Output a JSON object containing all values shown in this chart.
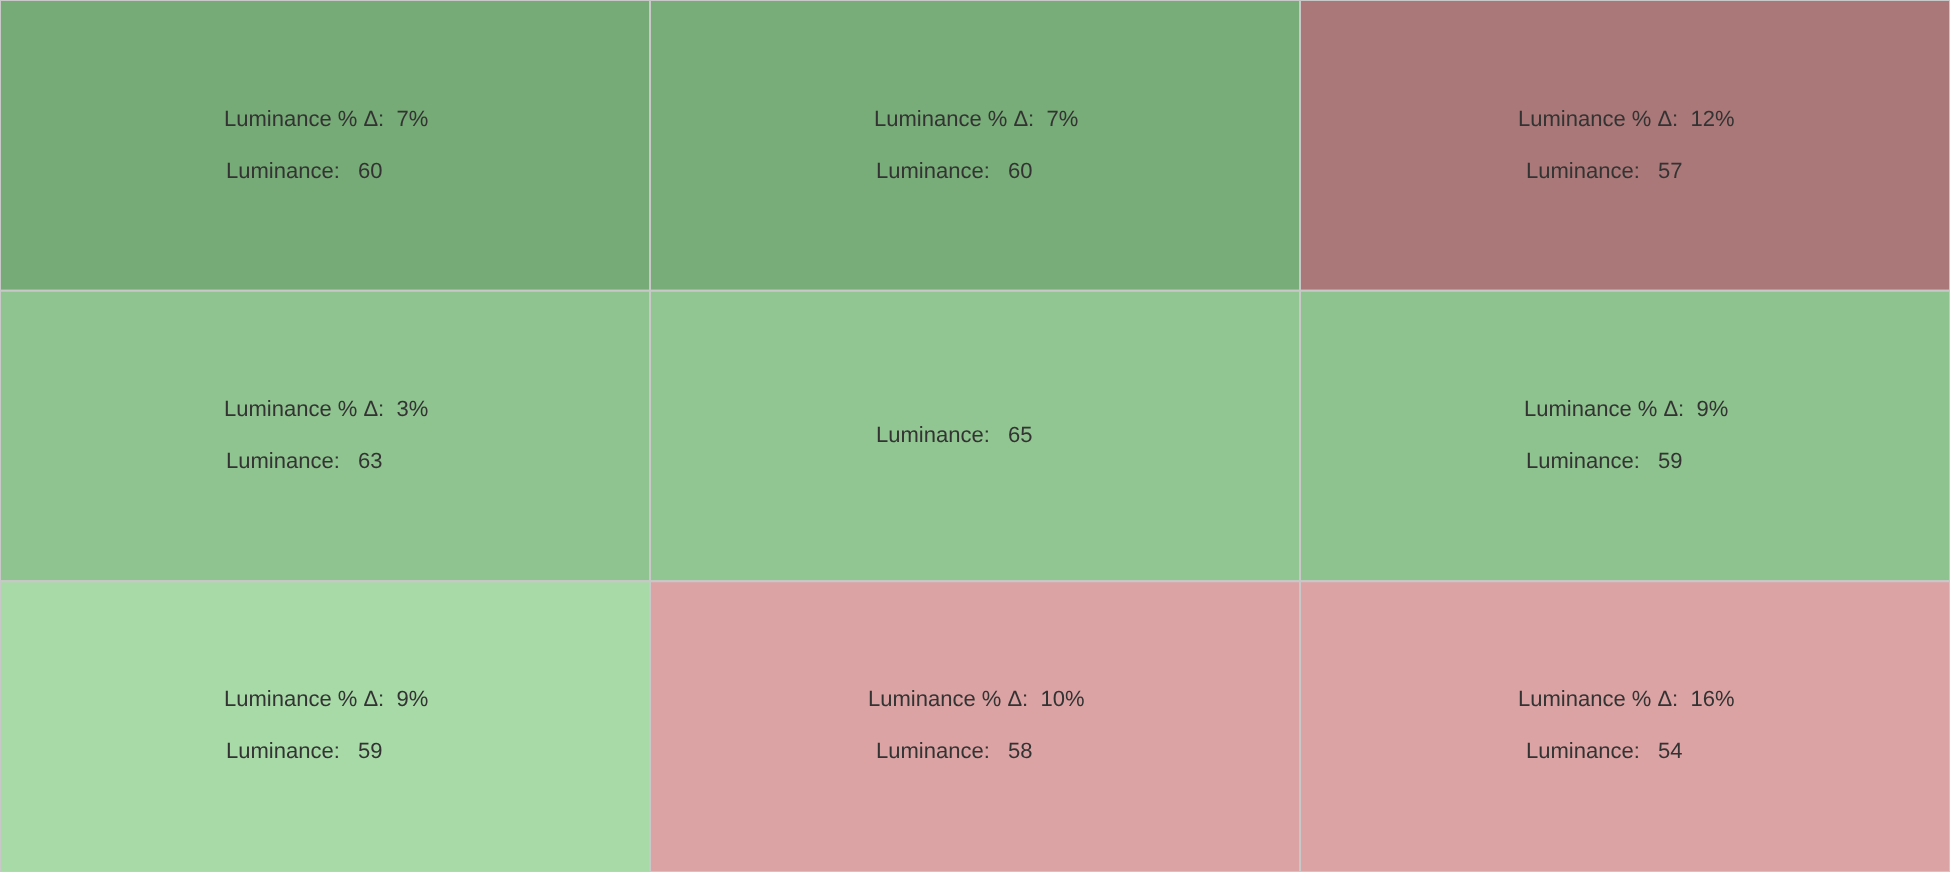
{
  "chart_data": {
    "type": "heatmap",
    "categories": [
      null,
      null,
      null
    ],
    "y_categories": [
      null,
      null,
      null
    ],
    "clabel": "Luminance:",
    "data_labels": true,
    "cells": [
      [
        60,
        60,
        57
      ],
      [
        63,
        65,
        59
      ],
      [
        59,
        58,
        54
      ]
    ],
    "annotations": [
      "Luminance % Δ:  7%",
      "Luminance % Δ:  7%",
      "Luminance % Δ:  12%",
      "Luminance % Δ:  3%",
      null,
      "Luminance % Δ:  9%",
      "Luminance % Δ:  9%",
      "Luminance % Δ:  10%",
      "Luminance % Δ:  16%"
    ],
    "colors": [
      "#76aa76",
      "#78ac78",
      "#aa7878",
      "#8fc38f",
      "#91c591",
      "#8ec28e",
      "#a8daa8",
      "#dba3a3",
      "#dba3a3"
    ]
  }
}
